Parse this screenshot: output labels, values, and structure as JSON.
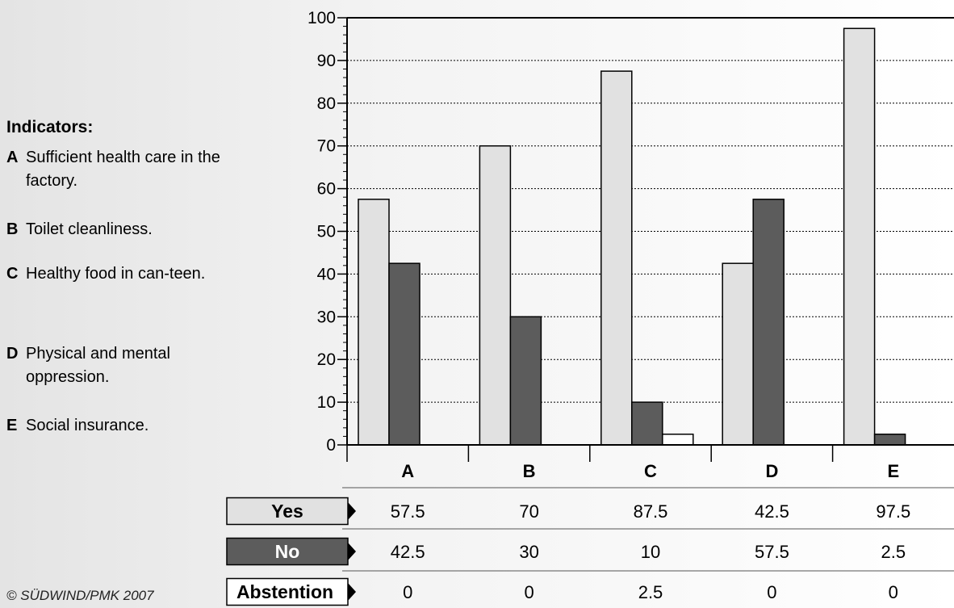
{
  "legend": {
    "title": "Indicators:",
    "items": [
      {
        "letter": "A",
        "text": "Sufficient health care in the factory."
      },
      {
        "letter": "B",
        "text": "Toilet cleanliness."
      },
      {
        "letter": "C",
        "text": "Healthy food in can-teen."
      },
      {
        "letter": "D",
        "text": "Physical and mental oppression."
      },
      {
        "letter": "E",
        "text": "Social insurance."
      }
    ]
  },
  "credit": "© SÜDWIND/PMK 2007",
  "colors": {
    "yes": "#e1e1e1",
    "no": "#5c5c5c",
    "abstention": "#ffffff",
    "stroke": "#000000"
  },
  "chart_data": {
    "type": "bar",
    "categories": [
      "A",
      "B",
      "C",
      "D",
      "E"
    ],
    "series": [
      {
        "name": "Yes",
        "values": [
          57.5,
          70,
          87.5,
          42.5,
          97.5
        ]
      },
      {
        "name": "No",
        "values": [
          42.5,
          30,
          10,
          57.5,
          2.5
        ]
      },
      {
        "name": "Abstention",
        "values": [
          0,
          0,
          2.5,
          0,
          0
        ]
      }
    ],
    "table_values": [
      [
        "57.5",
        "70",
        "87.5",
        "42.5",
        "97.5"
      ],
      [
        "42.5",
        "30",
        "10",
        "57.5",
        "2.5"
      ],
      [
        "0",
        "0",
        "2.5",
        "0",
        "0"
      ]
    ],
    "y_ticks": [
      0,
      10,
      20,
      30,
      40,
      50,
      60,
      70,
      80,
      90,
      100
    ],
    "ylim": [
      0,
      100
    ],
    "grid": true,
    "legend_placement": "table-below"
  }
}
